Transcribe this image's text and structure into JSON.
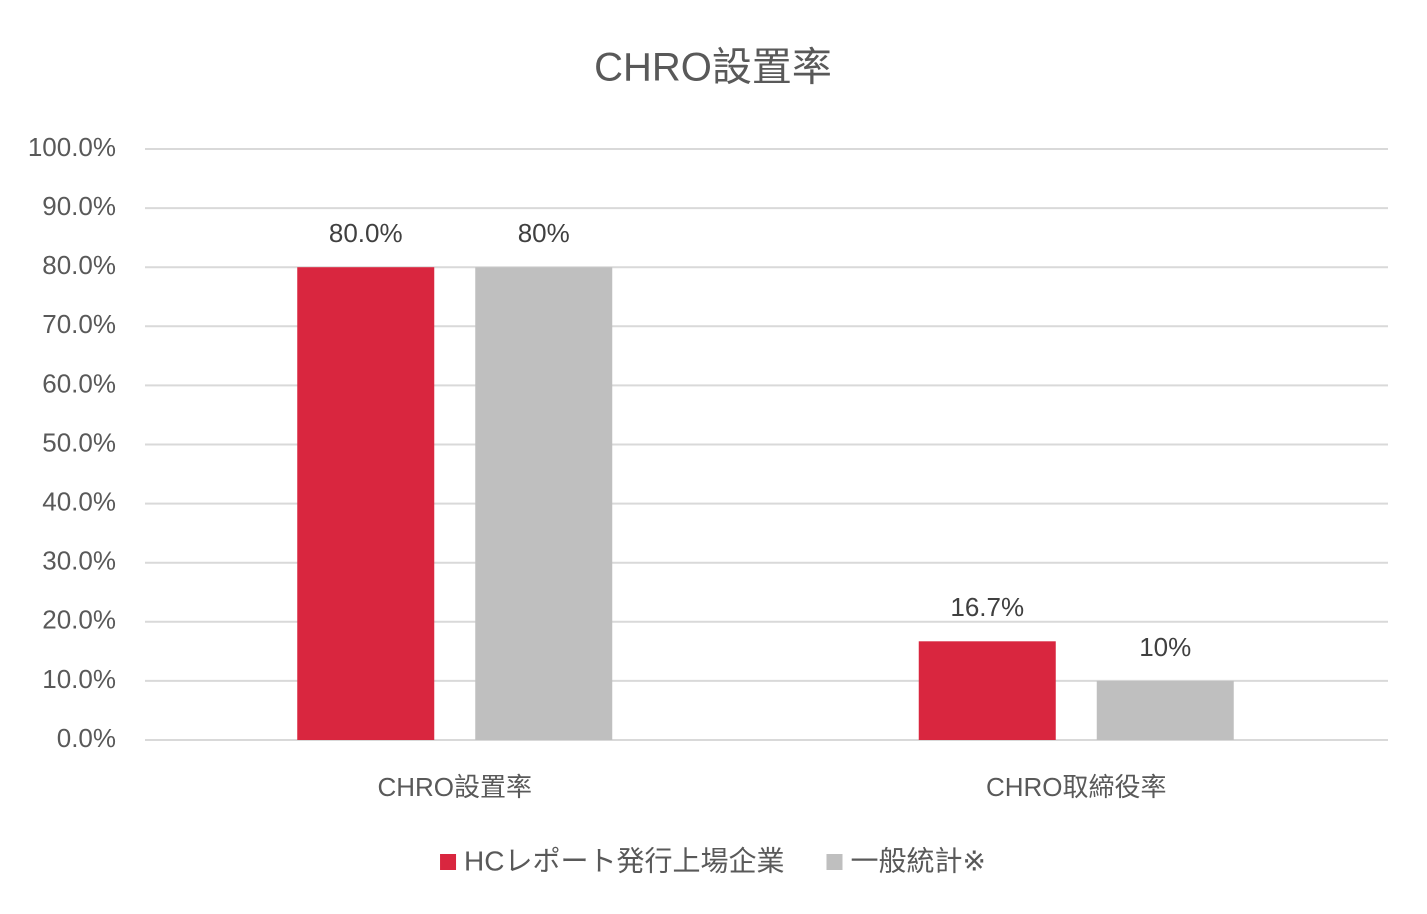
{
  "chart_data": {
    "type": "bar",
    "title": "CHRO設置率",
    "categories": [
      "CHRO設置率",
      "CHRO取締役率"
    ],
    "series": [
      {
        "name": "HCレポート発行上場企業",
        "color": "#d9263f",
        "values": [
          80,
          16.7
        ],
        "value_labels": [
          "80.0%",
          "16.7%"
        ]
      },
      {
        "name": "一般統計※",
        "color": "#bfbfbf",
        "values": [
          80,
          10
        ],
        "value_labels": [
          "80%",
          "10%"
        ]
      }
    ],
    "ylim": [
      0,
      100
    ],
    "yticks": [
      {
        "value": 0,
        "label": "0.0%"
      },
      {
        "value": 10,
        "label": "10.0%"
      },
      {
        "value": 20,
        "label": "20.0%"
      },
      {
        "value": 30,
        "label": "30.0%"
      },
      {
        "value": 40,
        "label": "40.0%"
      },
      {
        "value": 50,
        "label": "50.0%"
      },
      {
        "value": 60,
        "label": "60.0%"
      },
      {
        "value": 70,
        "label": "70.0%"
      },
      {
        "value": 80,
        "label": "80.0%"
      },
      {
        "value": 90,
        "label": "90.0%"
      },
      {
        "value": 100,
        "label": "100.0%"
      }
    ],
    "grid": true,
    "legend": "bottom"
  }
}
